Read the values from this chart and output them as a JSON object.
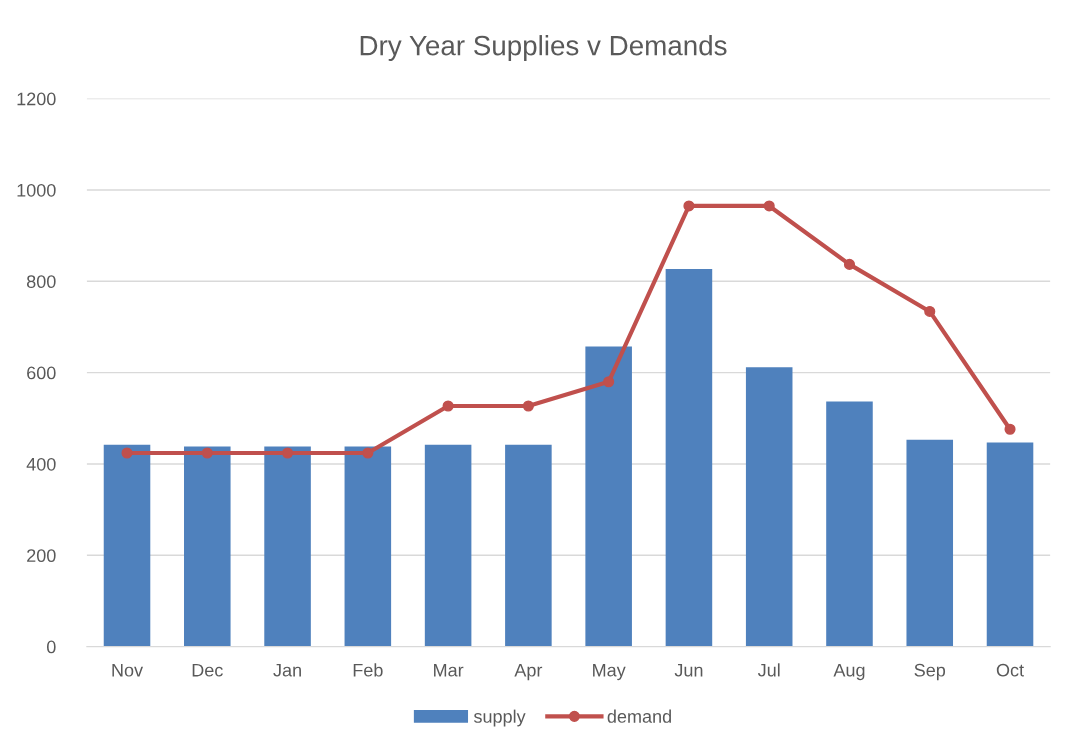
{
  "chart_data": {
    "type": "bar",
    "title": "Dry Year Supplies v Demands",
    "categories": [
      "Nov",
      "Dec",
      "Jan",
      "Feb",
      "Mar",
      "Apr",
      "May",
      "Jun",
      "Jul",
      "Aug",
      "Sep",
      "Oct"
    ],
    "series": [
      {
        "name": "supply",
        "color": "#4f81bd",
        "values": [
          442,
          438,
          438,
          438,
          442,
          442,
          657,
          827,
          612,
          537,
          453,
          447
        ]
      },
      {
        "name": "demand",
        "type": "line",
        "color": "#c0504d",
        "marker": "circle",
        "line_style": "solid",
        "values": [
          424,
          424,
          424,
          424,
          527,
          527,
          580,
          965,
          965,
          837,
          734,
          476
        ]
      }
    ],
    "ylim": [
      0,
      1200
    ],
    "yticks": [
      0,
      200,
      400,
      600,
      800,
      1000,
      1200
    ],
    "grid": "y",
    "legend": "bottom"
  }
}
